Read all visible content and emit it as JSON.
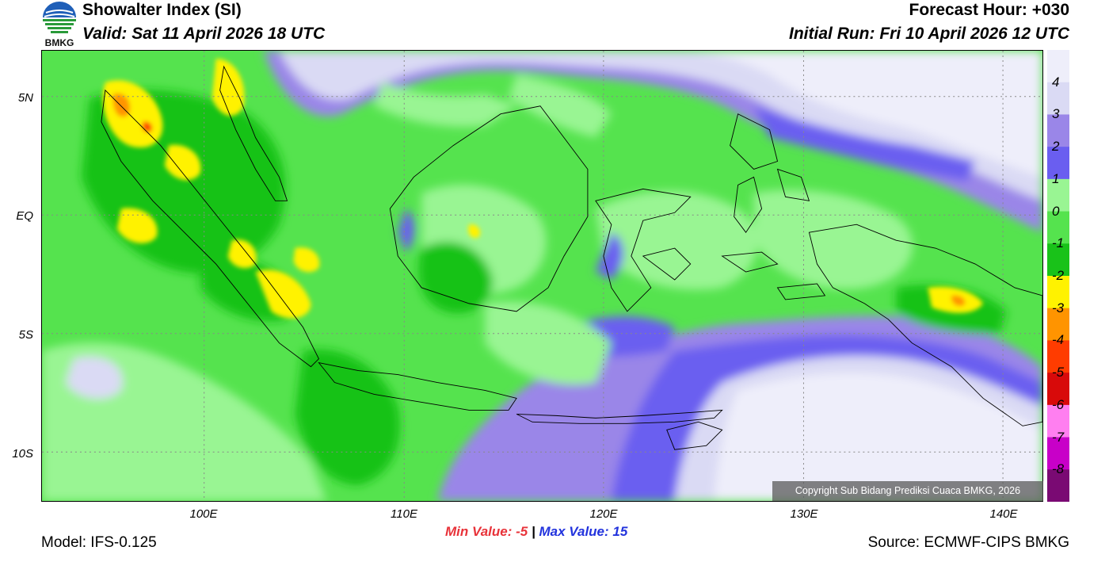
{
  "header": {
    "title": "Showalter Index (SI)",
    "valid": "Valid: Sat 11 April 2026 18 UTC",
    "forecast_hour": "Forecast Hour: +030",
    "initial_run": "Initial Run: Fri 10 April 2026 12 UTC"
  },
  "logo": {
    "text": "BMKG",
    "icon": "bmkg-logo-icon"
  },
  "axes": {
    "lat_labels": [
      "5N",
      "EQ",
      "5S",
      "10S"
    ],
    "lon_labels": [
      "100E",
      "110E",
      "120E",
      "130E",
      "140E"
    ]
  },
  "colorbar": {
    "labels": [
      "4",
      "3",
      "2",
      "1",
      "0",
      "-1",
      "-2",
      "-3",
      "-4",
      "-5",
      "-6",
      "-7",
      "-8"
    ],
    "colors": [
      "#eeeefa",
      "#dadaf4",
      "#9a86e8",
      "#6a5ef0",
      "#99f593",
      "#55e34e",
      "#19c219",
      "#fff200",
      "#ff9400",
      "#ff3c00",
      "#d80a0a",
      "#ff7ff0",
      "#c800c8",
      "#7a0a73"
    ]
  },
  "stats": {
    "min_label": "Min Value:",
    "min_value": "-5",
    "sep": "|",
    "max_label": "Max Value:",
    "max_value": "15"
  },
  "footer": {
    "model": "Model: IFS-0.125",
    "source": "Source: ECMWF-CIPS BMKG",
    "copyright": "Copyright Sub Bidang Prediksi Cuaca BMKG, 2026"
  }
}
